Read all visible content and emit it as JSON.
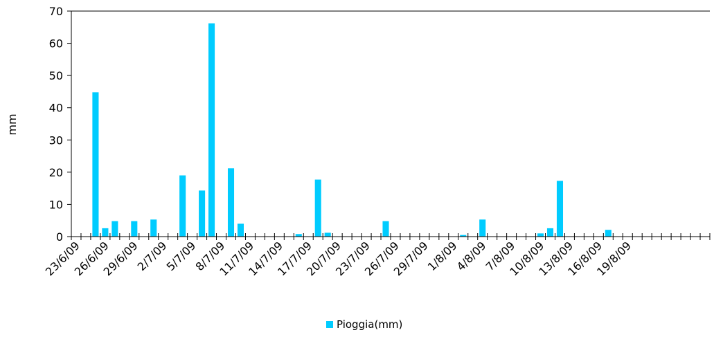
{
  "colors": {
    "bar": "#00CCFF",
    "axis": "#000000"
  },
  "chart_data": {
    "type": "bar",
    "ylabel": "mm",
    "xlabel": "",
    "title": "",
    "ylim": [
      0,
      70
    ],
    "yticks": [
      0,
      10,
      20,
      30,
      40,
      50,
      60,
      70
    ],
    "legend_position": "bottom",
    "grid": false,
    "categories": [
      "23/6/09",
      "24/6/09",
      "25/6/09",
      "26/6/09",
      "27/6/09",
      "28/6/09",
      "29/6/09",
      "30/6/09",
      "1/7/09",
      "2/7/09",
      "3/7/09",
      "4/7/09",
      "5/7/09",
      "6/7/09",
      "7/7/09",
      "8/7/09",
      "9/7/09",
      "10/7/09",
      "11/7/09",
      "12/7/09",
      "13/7/09",
      "14/7/09",
      "15/7/09",
      "16/7/09",
      "17/7/09",
      "18/7/09",
      "19/7/09",
      "20/7/09",
      "21/7/09",
      "22/7/09",
      "23/7/09",
      "24/7/09",
      "25/7/09",
      "26/7/09",
      "27/7/09",
      "28/7/09",
      "29/7/09",
      "30/7/09",
      "31/7/09",
      "1/8/09",
      "2/8/09",
      "3/8/09",
      "4/8/09",
      "5/8/09",
      "6/8/09",
      "7/8/09",
      "8/8/09",
      "9/8/09",
      "10/8/09",
      "11/8/09",
      "12/8/09",
      "13/8/09",
      "14/8/09",
      "15/8/09",
      "16/8/09",
      "17/8/09",
      "18/8/09",
      "19/8/09",
      "20/8/09",
      "21/8/09",
      "22/8/09",
      "23/8/09",
      "24/8/09",
      "25/8/09",
      "26/8/09",
      "27/8/09"
    ],
    "tick_labels": [
      "23/6/09",
      "26/6/09",
      "29/6/09",
      "2/7/09",
      "5/7/09",
      "8/7/09",
      "11/7/09",
      "14/7/09",
      "17/7/09",
      "20/7/09",
      "23/7/09",
      "26/7/09",
      "29/7/09",
      "1/8/09",
      "4/8/09",
      "7/8/09",
      "10/8/09",
      "13/8/09",
      "16/8/09",
      "19/8/09"
    ],
    "series": [
      {
        "name": "Pioggia(mm)",
        "values": [
          0,
          0,
          44.8,
          2.6,
          4.8,
          0,
          4.8,
          0,
          5.3,
          0,
          0,
          19,
          0,
          14.3,
          66.2,
          0,
          21.2,
          4,
          0,
          0,
          0,
          0,
          0,
          0.8,
          0,
          17.7,
          1.2,
          0,
          0,
          0,
          0,
          0,
          4.8,
          0,
          0,
          0,
          0,
          0,
          0,
          0,
          0.5,
          0,
          5.3,
          0,
          0,
          0,
          0,
          0,
          1,
          2.6,
          17.3,
          0,
          0,
          0,
          0,
          2.1,
          0,
          0,
          0,
          0,
          0,
          0,
          0,
          0,
          0,
          0
        ]
      }
    ]
  }
}
